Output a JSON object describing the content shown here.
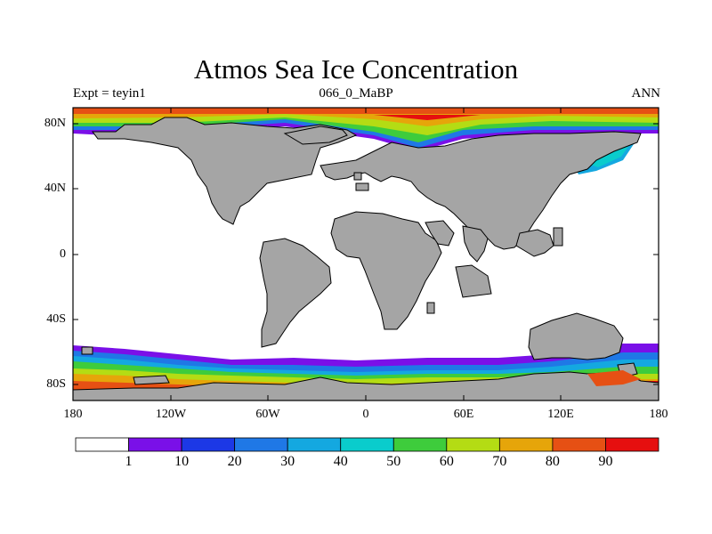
{
  "title": "Atmos Sea Ice Concentration",
  "subtitle_left": "Expt = teyin1",
  "subtitle_center": "066_0_MaBP",
  "subtitle_right": "ANN",
  "axes": {
    "lat_labels": [
      "80N",
      "40N",
      "0",
      "40S",
      "80S"
    ],
    "lon_labels": [
      "180",
      "120W",
      "60W",
      "0",
      "60E",
      "120E",
      "180"
    ]
  },
  "colors": {
    "land": "#a5a5a5",
    "ocean": "#ffffff"
  },
  "colorbar": {
    "levels": [
      "1",
      "10",
      "20",
      "30",
      "40",
      "50",
      "60",
      "70",
      "80",
      "90"
    ],
    "colors": [
      "#ffffff",
      "#7a10e8",
      "#1c38e6",
      "#1f78e6",
      "#14a8e0",
      "#0acccc",
      "#3ecc3c",
      "#b4dc14",
      "#e6a50a",
      "#e65014",
      "#e60f0f"
    ]
  }
}
